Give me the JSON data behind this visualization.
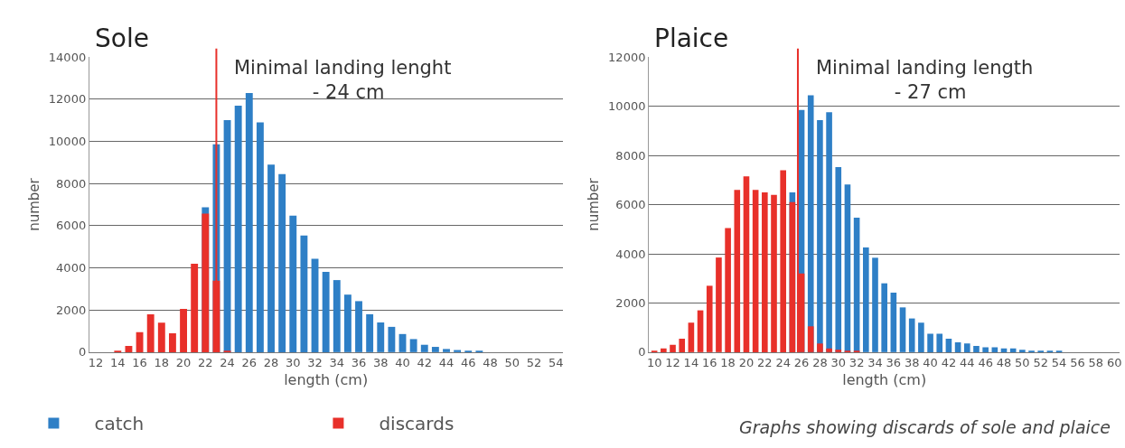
{
  "chart_data": [
    {
      "type": "bar",
      "title": "Sole",
      "xlabel": "length (cm)",
      "ylabel": "number",
      "x": [
        12,
        13,
        14,
        15,
        16,
        17,
        18,
        19,
        20,
        21,
        22,
        23,
        24,
        25,
        26,
        27,
        28,
        29,
        30,
        31,
        32,
        33,
        34,
        35,
        36,
        37,
        38,
        39,
        40,
        41,
        42,
        43,
        44,
        45,
        46,
        47,
        48,
        49,
        50,
        51,
        52,
        53,
        54
      ],
      "series": [
        {
          "name": "catch",
          "color": "#2e7fc6",
          "values": [
            null,
            null,
            null,
            null,
            null,
            null,
            null,
            null,
            null,
            null,
            6880,
            9870,
            11010,
            11700,
            12300,
            10900,
            8900,
            8450,
            6480,
            5540,
            4430,
            3810,
            3420,
            2730,
            2420,
            1800,
            1410,
            1200,
            860,
            620,
            350,
            250,
            150,
            100,
            50,
            50,
            0,
            0,
            0,
            0,
            0,
            0,
            0
          ]
        },
        {
          "name": "discards",
          "color": "#e8302a",
          "values": [
            0,
            0,
            50,
            300,
            950,
            1800,
            1400,
            900,
            2050,
            4200,
            6580,
            3390,
            50,
            null,
            null,
            null,
            null,
            null,
            null,
            null,
            null,
            null,
            null,
            null,
            null,
            null,
            null,
            null,
            null,
            null,
            null,
            null,
            null,
            null,
            null,
            null,
            null,
            null,
            null,
            null,
            null,
            null,
            null
          ]
        }
      ],
      "xlim": [
        11.4,
        54.6
      ],
      "xticks": [
        12,
        14,
        16,
        18,
        20,
        22,
        24,
        26,
        28,
        30,
        32,
        34,
        36,
        38,
        40,
        42,
        44,
        46,
        48,
        50,
        52,
        54
      ],
      "ylim": [
        0,
        14000
      ],
      "yticks": [
        0,
        2000,
        4000,
        6000,
        8000,
        10000,
        12000,
        14000
      ],
      "ref_lines": [
        {
          "axis": "x",
          "value": 23,
          "label": "Minimal landing lenght\n             - 24 cm",
          "color": "#e8302a"
        }
      ],
      "grid": "y",
      "legend": "bottom left"
    },
    {
      "type": "bar",
      "title": "Plaice",
      "xlabel": "length (cm)",
      "ylabel": "number",
      "x": [
        10,
        11,
        12,
        13,
        14,
        15,
        16,
        17,
        18,
        19,
        20,
        21,
        22,
        23,
        24,
        25,
        26,
        27,
        28,
        29,
        30,
        31,
        32,
        33,
        34,
        35,
        36,
        37,
        38,
        39,
        40,
        41,
        42,
        43,
        44,
        45,
        46,
        47,
        48,
        49,
        50,
        51,
        52,
        53,
        54,
        55,
        56,
        57,
        58,
        59,
        60
      ],
      "series": [
        {
          "name": "catch",
          "color": "#2e7fc6",
          "values": [
            null,
            null,
            null,
            null,
            null,
            null,
            null,
            null,
            null,
            null,
            null,
            null,
            null,
            null,
            null,
            6500,
            9850,
            10450,
            9440,
            9760,
            7530,
            6820,
            5470,
            4260,
            3840,
            2800,
            2420,
            1820,
            1370,
            1200,
            750,
            750,
            550,
            400,
            350,
            250,
            200,
            200,
            150,
            150,
            100,
            50,
            50,
            50,
            50,
            0,
            0,
            0,
            0,
            0,
            0
          ]
        },
        {
          "name": "discards",
          "color": "#e8302a",
          "values": [
            50,
            150,
            300,
            550,
            1200,
            1700,
            2700,
            3850,
            5050,
            6600,
            7150,
            6600,
            6500,
            6400,
            7400,
            6100,
            3200,
            1050,
            350,
            150,
            100,
            50,
            50,
            null,
            null,
            null,
            null,
            null,
            null,
            null,
            null,
            null,
            null,
            null,
            null,
            null,
            null,
            null,
            null,
            null,
            null,
            null,
            null,
            null,
            null,
            null,
            null,
            null,
            null,
            null,
            null
          ]
        }
      ],
      "xlim": [
        9.4,
        60.6
      ],
      "xticks": [
        10,
        12,
        14,
        16,
        18,
        20,
        22,
        24,
        26,
        28,
        30,
        32,
        34,
        36,
        38,
        40,
        42,
        44,
        46,
        48,
        50,
        52,
        54,
        56,
        58,
        60
      ],
      "ylim": [
        0,
        12000
      ],
      "yticks": [
        0,
        2000,
        4000,
        6000,
        8000,
        10000,
        12000
      ],
      "ref_lines": [
        {
          "axis": "x",
          "value": 25.6,
          "label": "Minimal landing length\n             - 27 cm",
          "color": "#e8302a"
        }
      ],
      "grid": "y",
      "annotations": [
        "Graphs showing discards of sole and plaice"
      ]
    }
  ]
}
